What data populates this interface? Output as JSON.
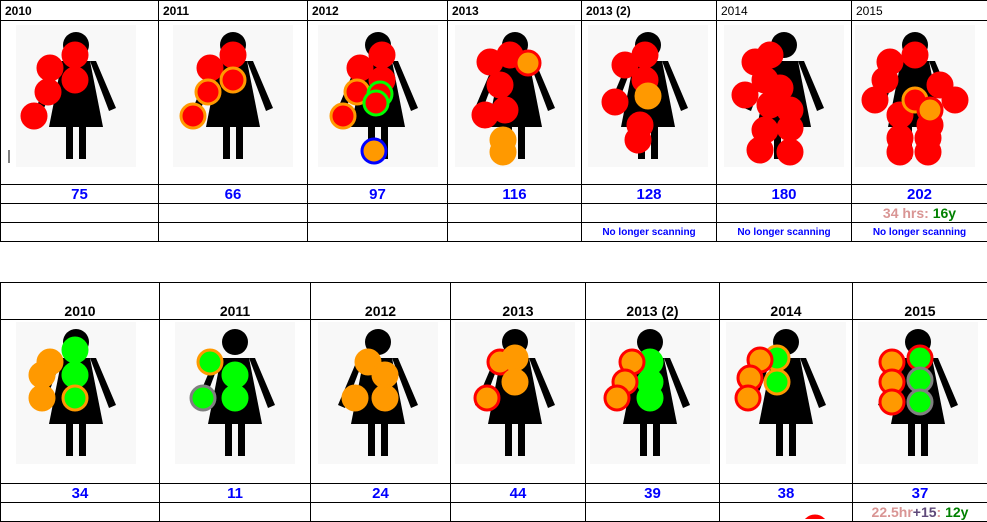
{
  "top_table": {
    "years": [
      "2010",
      "2011",
      "2012",
      "2013",
      "2013 (2)",
      "2014",
      "2015"
    ],
    "counts": [
      "75",
      "66",
      "97",
      "116",
      "128",
      "180",
      "202"
    ],
    "note_2015": {
      "hours": "34 hrs:",
      "age": "16y"
    },
    "status": [
      "",
      "",
      "",
      "",
      "No longer scanning",
      "No longer scanning",
      "No longer scanning"
    ]
  },
  "bottom_table": {
    "years": [
      "2010",
      "2011",
      "2012",
      "2013",
      "2013 (2)",
      "2014",
      "2015"
    ],
    "counts": [
      "34",
      "11",
      "24",
      "44",
      "39",
      "38",
      "37"
    ],
    "note_2015": {
      "hours": "22.5hr",
      "plus": "+15",
      "colon": ":",
      "age": "12y"
    }
  },
  "colors": {
    "red": "#ff0000",
    "orange": "#ff9900",
    "green": "#00ff00",
    "gray": "#808080",
    "blue": "#0000ff",
    "count_text": "#0000ff"
  },
  "icons": [
    "woman-figure-icon",
    "marker-circle-icon"
  ]
}
